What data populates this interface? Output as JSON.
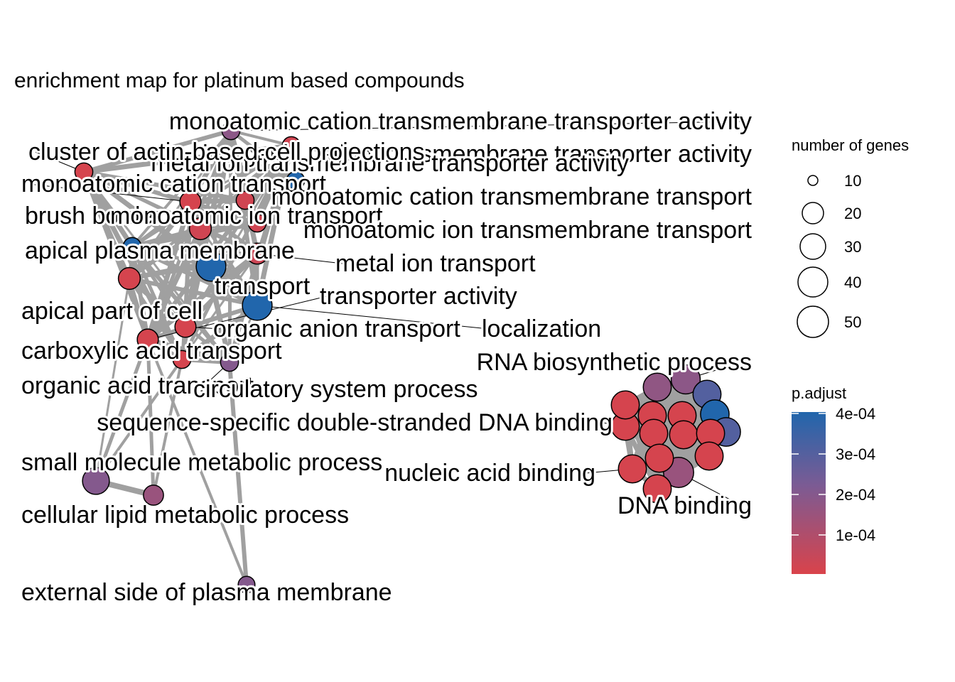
{
  "title": "enrichment map for platinum based compounds",
  "legend": {
    "size_title": "number of genes",
    "size_values": [
      "10",
      "20",
      "30",
      "40",
      "50"
    ],
    "color_title": "p.adjust",
    "color_values": [
      "4e-04",
      "3e-04",
      "2e-04",
      "1e-04"
    ],
    "color_high": "#2166AC",
    "color_mid": "#7B5B94",
    "color_low": "#D9434B"
  },
  "nodes": [
    {
      "label": "monoatomic cation transmembrane transporter activity",
      "size": 8,
      "p": 0.00018
    },
    {
      "label": "inorganic cation transmembrane transporter activity",
      "size": 8,
      "p": 2e-05
    },
    {
      "label": "metal ion transmembrane transporter activity",
      "size": 8,
      "p": 0.0004
    },
    {
      "label": "cluster of actin-based cell projections",
      "size": 8,
      "p": 1e-05
    },
    {
      "label": "monoatomic cation transport",
      "size": 14,
      "p": 1e-05
    },
    {
      "label": "monoatomic cation transmembrane transport",
      "size": 8,
      "p": 2e-05
    },
    {
      "label": "brush border",
      "size": 8,
      "p": 0.0004
    },
    {
      "label": "monoatomic ion transport",
      "size": 16,
      "p": 2e-05
    },
    {
      "label": "monoatomic ion transmembrane transport",
      "size": 8,
      "p": 2e-05
    },
    {
      "label": "apical plasma membrane",
      "size": 8,
      "p": 0.0004
    },
    {
      "label": "metal ion transport",
      "size": 14,
      "p": 3e-05
    },
    {
      "label": "apical part of cell",
      "size": 16,
      "p": 1e-05
    },
    {
      "label": "transport",
      "size": 40,
      "p": 0.0004
    },
    {
      "label": "transporter activity",
      "size": 14,
      "p": 1e-05
    },
    {
      "label": "localization",
      "size": 40,
      "p": 0.0004
    },
    {
      "label": "organic anion transport",
      "size": 14,
      "p": 1e-05
    },
    {
      "label": "carboxylic acid transport",
      "size": 14,
      "p": 1e-05
    },
    {
      "label": "organic acid transport",
      "size": 8,
      "p": 1e-05
    },
    {
      "label": "circulatory system process",
      "size": 8,
      "p": 0.0002
    },
    {
      "label": "small molecule metabolic process",
      "size": 30,
      "p": 0.0002
    },
    {
      "label": "cellular lipid metabolic process",
      "size": 12,
      "p": 0.00015
    },
    {
      "label": "external side of plasma membrane",
      "size": 6,
      "p": 0.0002
    },
    {
      "label": "RNA biosynthetic process",
      "size": 38,
      "p": 0.00018
    },
    {
      "label": "sequence-specific double-stranded DNA binding",
      "size": 34,
      "p": 1e-05
    },
    {
      "label": "nucleic acid binding",
      "size": 34,
      "p": 1e-05
    },
    {
      "label": "DNA binding",
      "size": 42,
      "p": 0.00015
    },
    {
      "label": "",
      "size": 34,
      "p": 0.00017
    },
    {
      "label": "",
      "size": 34,
      "p": 0.0003
    },
    {
      "label": "",
      "size": 36,
      "p": 0.0004
    },
    {
      "label": "",
      "size": 36,
      "p": 0.0003
    },
    {
      "label": "",
      "size": 34,
      "p": 1e-05
    },
    {
      "label": "",
      "size": 34,
      "p": 1e-05
    },
    {
      "label": "",
      "size": 34,
      "p": 1e-05
    },
    {
      "label": "",
      "size": 34,
      "p": 1e-05
    },
    {
      "label": "",
      "size": 34,
      "p": 1e-05
    },
    {
      "label": "",
      "size": 34,
      "p": 1e-05
    },
    {
      "label": "",
      "size": 34,
      "p": 1e-05
    },
    {
      "label": "",
      "size": 34,
      "p": 1e-05
    },
    {
      "label": "",
      "size": 34,
      "p": 1e-05
    }
  ]
}
